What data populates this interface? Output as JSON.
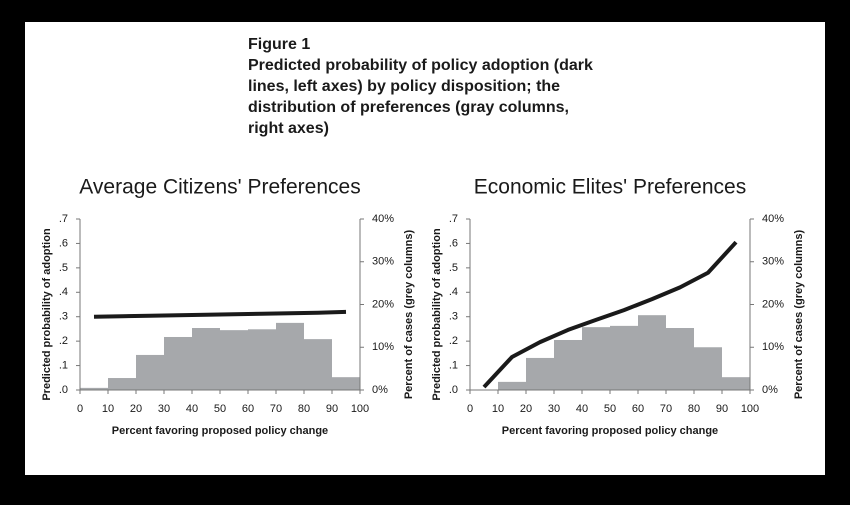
{
  "figure": {
    "label": "Figure 1",
    "caption": [
      "Predicted probability of policy adoption (dark",
      "lines, left axes) by policy disposition; the",
      "distribution of preferences (gray columns,",
      "right axes)"
    ]
  },
  "chart_data": [
    {
      "type": "combo",
      "title": "Average Citizens' Preferences",
      "xlabel": "Percent favoring proposed policy change",
      "ylabel": "Predicted probability of adoption",
      "y2label": "Percent of cases (grey columns)",
      "xlim": [
        0,
        100
      ],
      "xticks": [
        0,
        10,
        20,
        30,
        40,
        50,
        60,
        70,
        80,
        90,
        100
      ],
      "ylim": [
        0,
        0.7
      ],
      "yticks": [
        {
          "value": 0,
          "label": ".0"
        },
        {
          "value": 0.1,
          "label": ".1"
        },
        {
          "value": 0.2,
          "label": ".2"
        },
        {
          "value": 0.3,
          "label": ".3"
        },
        {
          "value": 0.4,
          "label": ".4"
        },
        {
          "value": 0.5,
          "label": ".5"
        },
        {
          "value": 0.6,
          "label": ".6"
        },
        {
          "value": 0.7,
          "label": ".7"
        }
      ],
      "y2lim": [
        0,
        40
      ],
      "y2ticks": [
        {
          "value": 0,
          "label": "0%"
        },
        {
          "value": 10,
          "label": "10%"
        },
        {
          "value": 20,
          "label": "20%"
        },
        {
          "value": 30,
          "label": "30%"
        },
        {
          "value": 40,
          "label": "40%"
        }
      ],
      "bins": [
        0,
        10,
        20,
        30,
        40,
        50,
        60,
        70,
        80,
        90,
        100
      ],
      "series": [
        {
          "type": "histogram",
          "axis": "y2",
          "color": "#a6a8ab",
          "values": [
            0.5,
            2.8,
            8.2,
            12.4,
            14.5,
            14.0,
            14.2,
            15.7,
            11.9,
            3.0
          ]
        },
        {
          "type": "line",
          "color": "#1a1a1a",
          "x": [
            5,
            15,
            25,
            35,
            45,
            55,
            65,
            75,
            85,
            95
          ],
          "values": [
            0.3,
            0.302,
            0.304,
            0.306,
            0.308,
            0.31,
            0.312,
            0.314,
            0.316,
            0.32
          ]
        }
      ]
    },
    {
      "type": "combo",
      "title": "Economic Elites' Preferences",
      "xlabel": "Percent favoring proposed policy change",
      "ylabel": "Predicted probability of adoption",
      "y2label": "Percent of cases (grey columns)",
      "xlim": [
        0,
        100
      ],
      "xticks": [
        0,
        10,
        20,
        30,
        40,
        50,
        60,
        70,
        80,
        90,
        100
      ],
      "ylim": [
        0,
        0.7
      ],
      "yticks": [
        {
          "value": 0,
          "label": ".0"
        },
        {
          "value": 0.1,
          "label": ".1"
        },
        {
          "value": 0.2,
          "label": ".2"
        },
        {
          "value": 0.3,
          "label": ".3"
        },
        {
          "value": 0.4,
          "label": ".4"
        },
        {
          "value": 0.5,
          "label": ".5"
        },
        {
          "value": 0.6,
          "label": ".6"
        },
        {
          "value": 0.7,
          "label": ".7"
        }
      ],
      "y2lim": [
        0,
        40
      ],
      "y2ticks": [
        {
          "value": 0,
          "label": "0%"
        },
        {
          "value": 10,
          "label": "10%"
        },
        {
          "value": 20,
          "label": "20%"
        },
        {
          "value": 30,
          "label": "30%"
        },
        {
          "value": 40,
          "label": "40%"
        }
      ],
      "bins": [
        0,
        10,
        20,
        30,
        40,
        50,
        60,
        70,
        80,
        90,
        100
      ],
      "series": [
        {
          "type": "histogram",
          "axis": "y2",
          "color": "#a6a8ab",
          "values": [
            0,
            1.9,
            7.5,
            11.7,
            14.7,
            15.0,
            17.5,
            14.5,
            10.0,
            3.0
          ]
        },
        {
          "type": "line",
          "color": "#1a1a1a",
          "x": [
            5,
            15,
            25,
            35,
            45,
            55,
            65,
            75,
            85,
            95
          ],
          "values": [
            0.012,
            0.135,
            0.196,
            0.246,
            0.287,
            0.327,
            0.372,
            0.42,
            0.48,
            0.605
          ]
        }
      ]
    }
  ]
}
